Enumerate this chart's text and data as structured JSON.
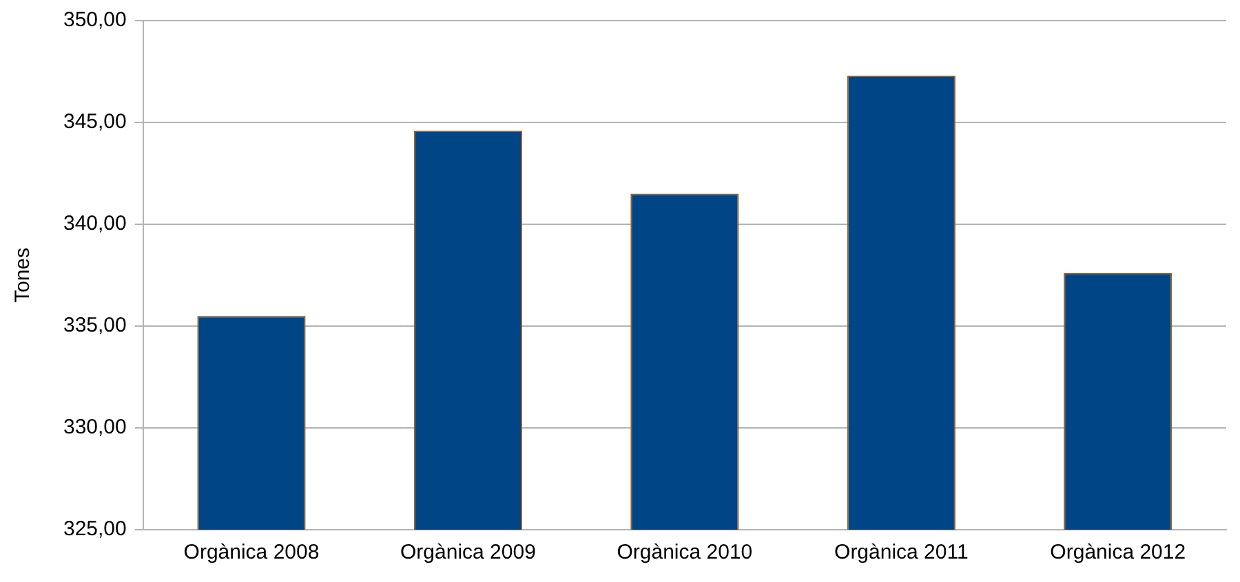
{
  "chart_data": {
    "type": "bar",
    "ylabel": "Tones",
    "categories": [
      "Orgànica 2008",
      "Orgànica 2009",
      "Orgànica 2010",
      "Orgànica 2011",
      "Orgànica 2012"
    ],
    "values": [
      335.5,
      344.6,
      341.5,
      347.3,
      337.6
    ],
    "color": "#004586",
    "ylim": [
      325,
      350
    ],
    "yticks": [
      {
        "value": 325,
        "label": "325,00"
      },
      {
        "value": 330,
        "label": "330,00"
      },
      {
        "value": 335,
        "label": "335,00"
      },
      {
        "value": 340,
        "label": "340,00"
      },
      {
        "value": 345,
        "label": "345,00"
      },
      {
        "value": 350,
        "label": "350,00"
      }
    ],
    "grid": "y"
  }
}
